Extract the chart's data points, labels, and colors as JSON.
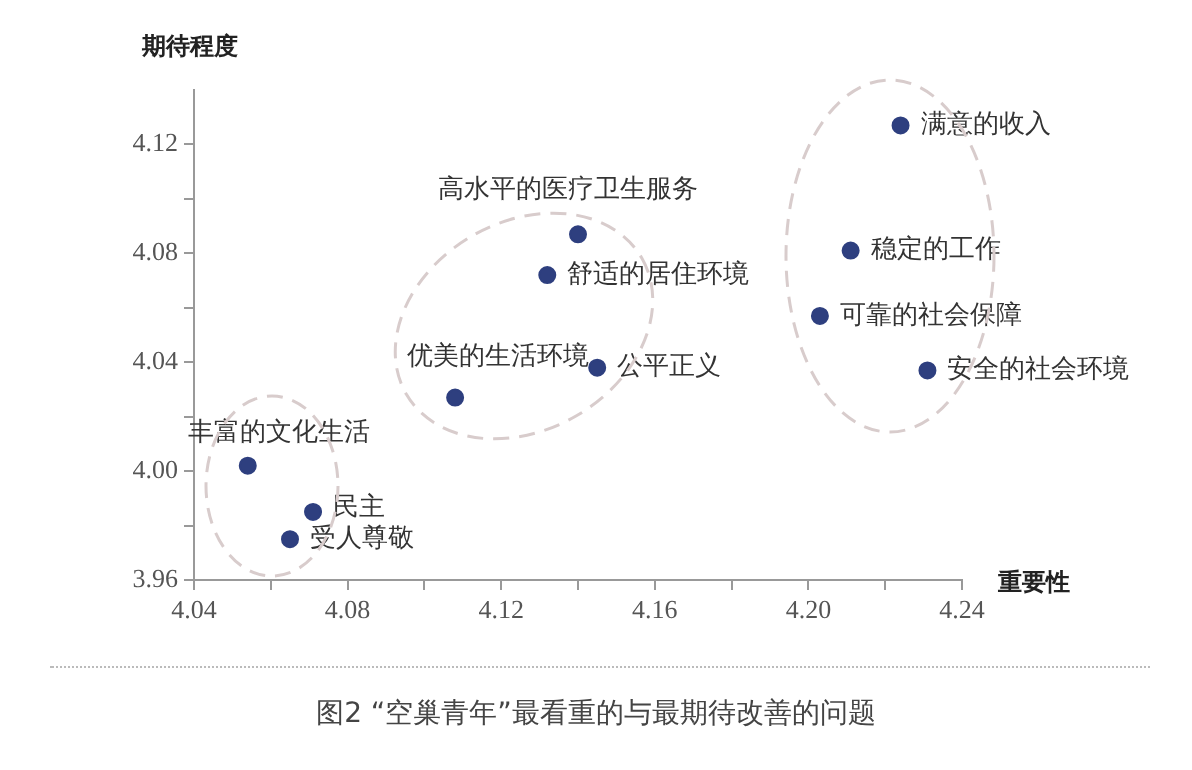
{
  "chart_data": {
    "type": "scatter",
    "xlabel": "重要性",
    "ylabel": "期待程度",
    "x": [
      4.054,
      4.071,
      4.065,
      4.108,
      4.132,
      4.14,
      4.145,
      4.224,
      4.211,
      4.203,
      4.231
    ],
    "values": [
      4.002,
      3.985,
      3.975,
      4.027,
      4.072,
      4.087,
      4.038,
      4.127,
      4.081,
      4.057,
      4.037
    ],
    "color": "#2e3f7f",
    "marker": "circle",
    "grid": false,
    "legend": false,
    "xlim": [
      4.04,
      4.24
    ],
    "xticks": [
      4.04,
      {
        "value": 4.06,
        "label": null
      },
      4.08,
      {
        "value": 4.1,
        "label": null
      },
      4.12,
      {
        "value": 4.14,
        "label": null
      },
      4.16,
      {
        "value": 4.18,
        "label": null
      },
      {
        "value": 4.2,
        "label": "4.20"
      },
      {
        "value": 4.22,
        "label": null
      },
      4.24
    ],
    "ylim": [
      3.96,
      4.14
    ],
    "yticks": [
      3.96,
      {
        "value": 3.98,
        "label": null
      },
      {
        "value": 4.0,
        "label": "4.00"
      },
      {
        "value": 4.02,
        "label": null
      },
      4.04,
      {
        "value": 4.06,
        "label": null
      },
      4.08,
      {
        "value": 4.1,
        "label": null
      },
      4.12
    ],
    "annotations": [
      {
        "text": "丰富的文化生活",
        "x": 4.054,
        "y": 4.002
      },
      {
        "text": "民主",
        "x": 4.071,
        "y": 3.985
      },
      {
        "text": "受人尊敬",
        "x": 4.065,
        "y": 3.975
      },
      {
        "text": "优美的生活环境",
        "x": 4.108,
        "y": 4.027
      },
      {
        "text": "舒适的居住环境",
        "x": 4.132,
        "y": 4.072
      },
      {
        "text": "高水平的医疗卫生服务",
        "x": 4.14,
        "y": 4.087
      },
      {
        "text": "公平正义",
        "x": 4.145,
        "y": 4.038
      },
      {
        "text": "满意的收入",
        "x": 4.224,
        "y": 4.127
      },
      {
        "text": "稳定的工作",
        "x": 4.211,
        "y": 4.081
      },
      {
        "text": "可靠的社会保障",
        "x": 4.203,
        "y": 4.057
      },
      {
        "text": "安全的社会环境",
        "x": 4.231,
        "y": 4.037
      },
      "图2 “空巢青年”最看重的与最期待改善的问题"
    ]
  }
}
